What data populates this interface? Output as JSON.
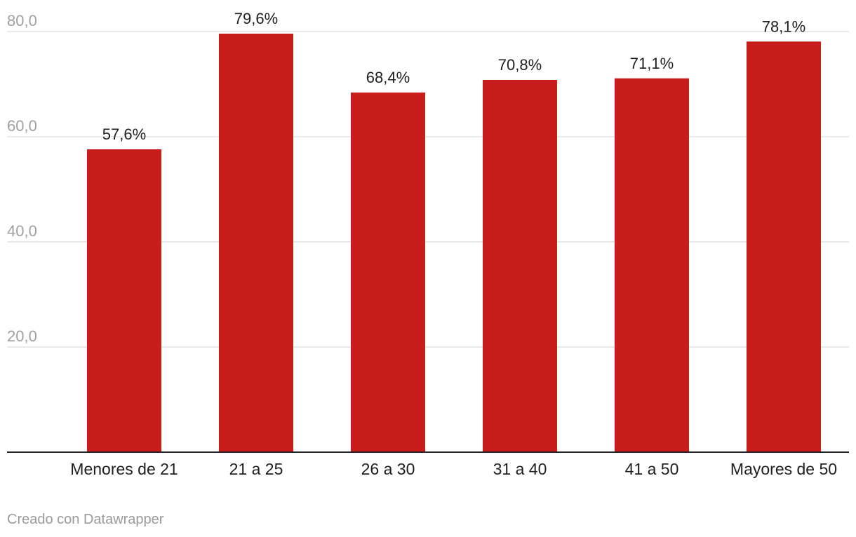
{
  "chart_data": {
    "type": "bar",
    "categories": [
      "Menores de 21",
      "21 a 25",
      "26 a 30",
      "31 a 40",
      "41 a 50",
      "Mayores de 50"
    ],
    "values": [
      57.6,
      79.6,
      68.4,
      70.8,
      71.1,
      78.1
    ],
    "value_labels": [
      "57,6%",
      "79,6%",
      "68,4%",
      "70,8%",
      "71,1%",
      "78,1%"
    ],
    "ylim": [
      0,
      80
    ],
    "yticks": [
      20,
      40,
      60,
      80
    ],
    "ytick_labels": [
      "20,0",
      "40,0",
      "60,0",
      "80,0"
    ],
    "grid": true,
    "bar_color": "#c91c1c",
    "title": "",
    "xlabel": "",
    "ylabel": ""
  },
  "footer": {
    "credit": "Creado con Datawrapper"
  }
}
